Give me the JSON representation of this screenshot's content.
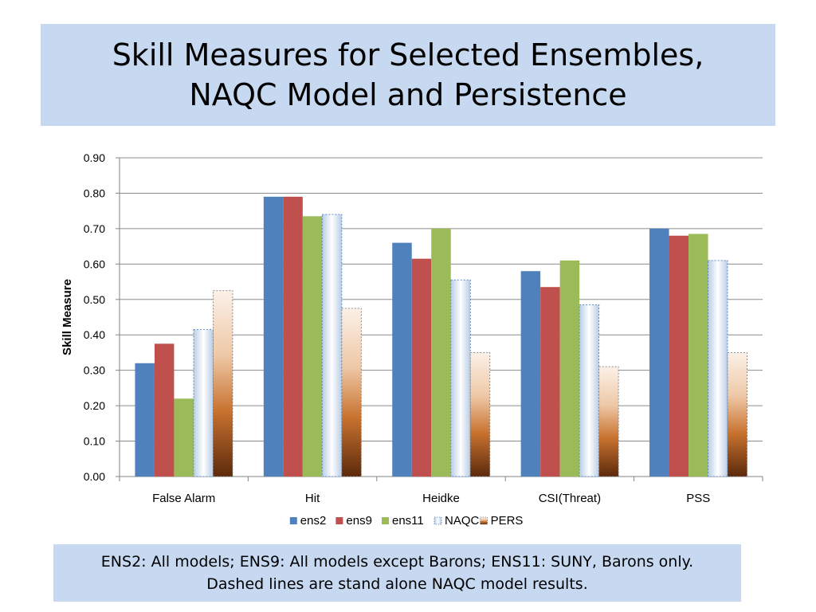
{
  "slide": {
    "title_line1": "Skill Measures for Selected Ensembles,",
    "title_line2": "NAQC Model and Persistence",
    "note_line1": "ENS2:  All models; ENS9: All models except Barons; ENS11:  SUNY, Barons only.",
    "note_line2": "Dashed lines are stand alone NAQC model results."
  },
  "chart_data": {
    "type": "bar",
    "title": "",
    "xlabel": "",
    "ylabel": "Skill Measure",
    "ylim": [
      0,
      0.9
    ],
    "ytick_step": 0.1,
    "ytick_labels": [
      "0.00",
      "0.10",
      "0.20",
      "0.30",
      "0.40",
      "0.50",
      "0.60",
      "0.70",
      "0.80",
      "0.90"
    ],
    "grid": true,
    "legend_position": "bottom",
    "categories": [
      "False Alarm",
      "Hit",
      "Heidke",
      "CSI(Threat)",
      "PSS"
    ],
    "series": [
      {
        "name": "ens2",
        "values": [
          0.32,
          0.79,
          0.66,
          0.58,
          0.7
        ],
        "color": "#4f81bd",
        "style": "solid"
      },
      {
        "name": "ens9",
        "values": [
          0.375,
          0.79,
          0.615,
          0.535,
          0.68
        ],
        "color": "#c0504d",
        "style": "solid"
      },
      {
        "name": "ens11",
        "values": [
          0.22,
          0.735,
          0.7,
          0.61,
          0.685
        ],
        "color": "#9bbb59",
        "style": "solid"
      },
      {
        "name": "NAQC",
        "values": [
          0.415,
          0.74,
          0.555,
          0.485,
          0.61
        ],
        "color": "#dce6f2",
        "style": "dashed-light-gradient"
      },
      {
        "name": "PERS",
        "values": [
          0.525,
          0.475,
          0.35,
          0.31,
          0.35
        ],
        "color": "#c0703a",
        "style": "dashed-brown-gradient"
      }
    ]
  }
}
